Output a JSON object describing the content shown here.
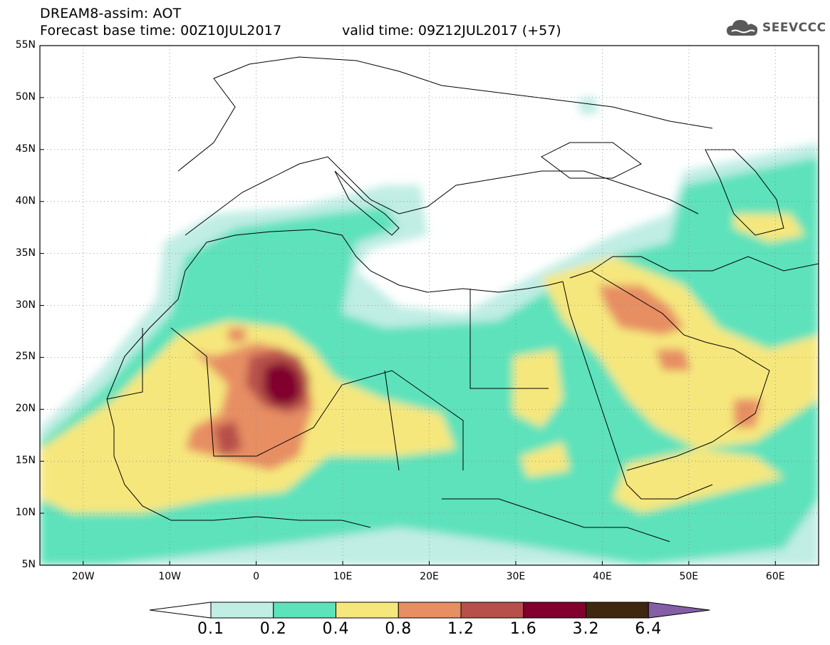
{
  "header": {
    "title_line1": "DREAM8-assim: AOT",
    "title_line2": "Forecast base time: 00Z10JUL2017",
    "valid_time": "valid time: 09Z12JUL2017 (+57)",
    "logo_text": "SEEVCCC",
    "logo_icon": "cloud-icon"
  },
  "map": {
    "lon_range": [
      -25,
      65
    ],
    "lat_range": [
      5,
      55
    ],
    "grid": "dotted",
    "lat_labels": [
      "55N",
      "50N",
      "45N",
      "40N",
      "35N",
      "30N",
      "25N",
      "20N",
      "15N",
      "10N",
      "5N"
    ],
    "lat_values": [
      55,
      50,
      45,
      40,
      35,
      30,
      25,
      20,
      15,
      10,
      5
    ],
    "lon_labels": [
      "20W",
      "10W",
      "0",
      "10E",
      "20E",
      "30E",
      "40E",
      "50E",
      "60E"
    ],
    "lon_values": [
      -20,
      -10,
      0,
      10,
      20,
      30,
      40,
      50,
      60
    ]
  },
  "colorbar": {
    "labels": [
      "0.1",
      "0.2",
      "0.4",
      "0.8",
      "1.2",
      "1.6",
      "3.2",
      "6.4"
    ],
    "colors": [
      "#ffffff",
      "#c0ede4",
      "#5de2bb",
      "#f6e77d",
      "#e78e63",
      "#b7504a",
      "#81002e",
      "#3f2710",
      "#855fa6"
    ]
  }
}
